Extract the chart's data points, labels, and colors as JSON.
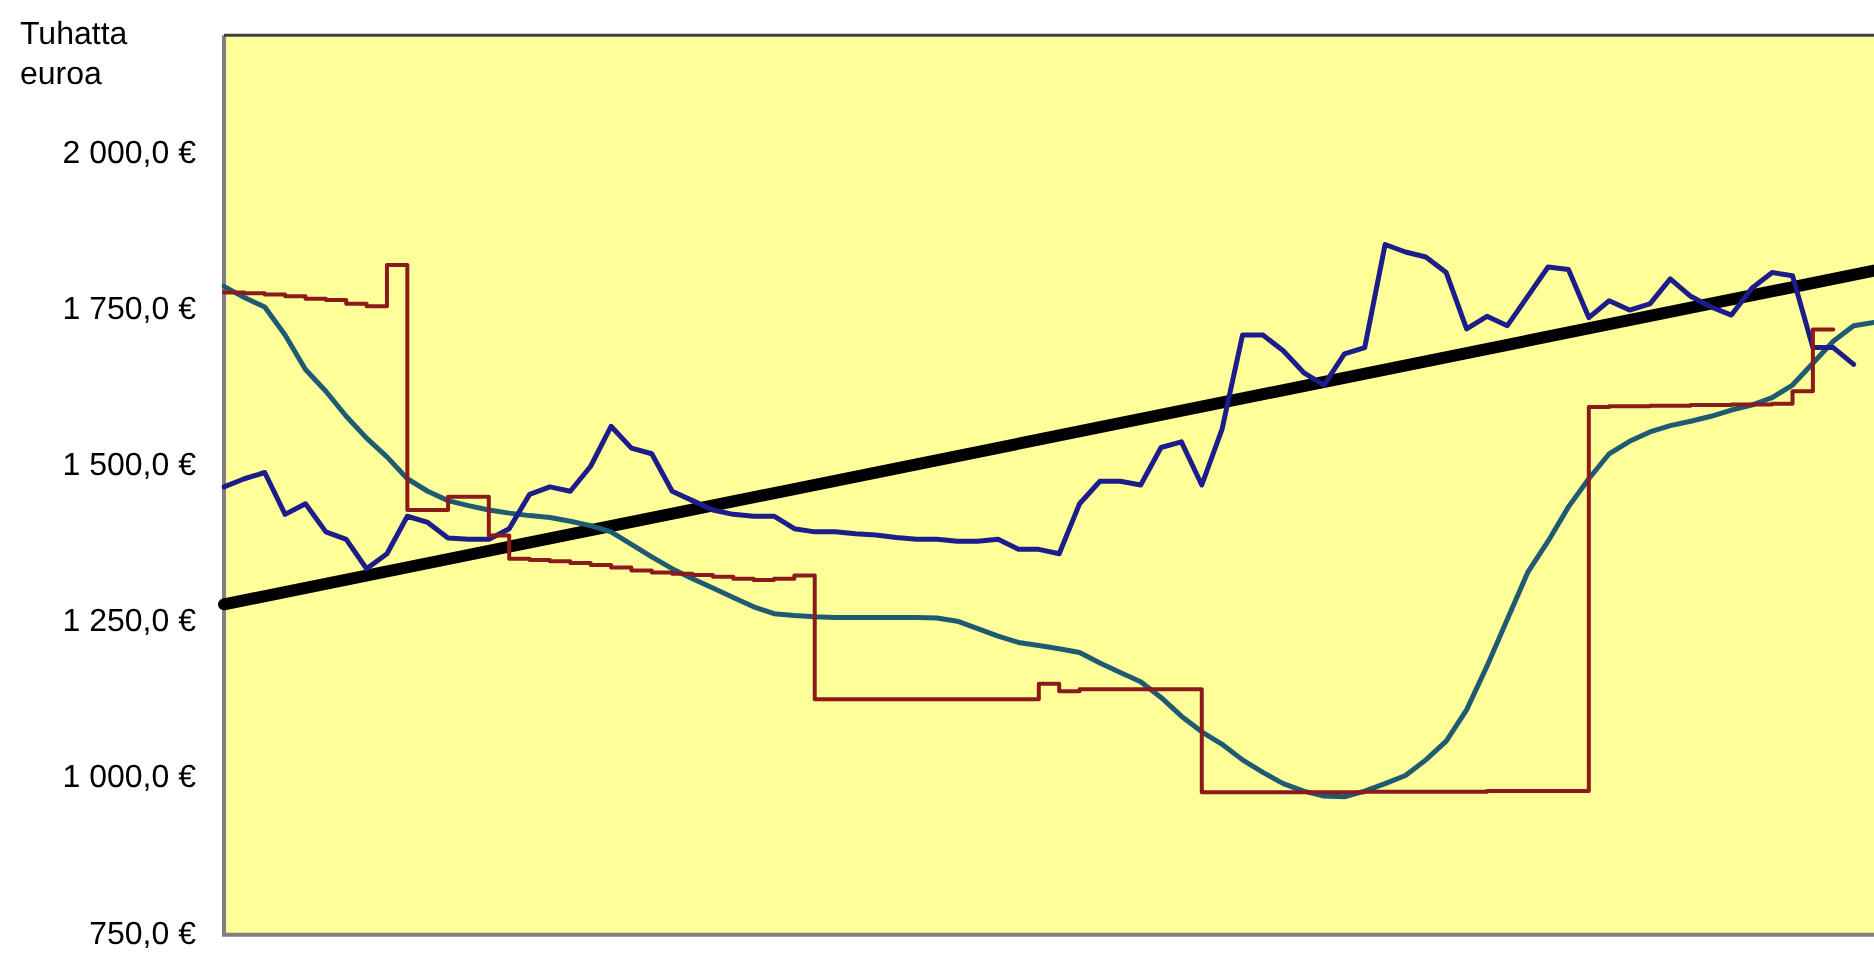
{
  "chart_data": {
    "type": "line",
    "ylabel": "Tuhatta euroa",
    "categories": [
      null,
      null,
      null,
      null,
      null,
      null,
      null,
      null,
      null,
      null,
      null,
      null,
      null,
      null,
      null,
      null,
      null,
      null,
      null,
      null,
      null,
      null,
      null,
      null,
      null,
      null,
      null,
      null,
      null,
      null,
      null,
      null,
      null,
      null,
      null,
      null,
      null,
      null,
      null,
      null,
      null,
      null,
      null,
      null,
      null,
      null,
      null,
      null,
      null,
      null,
      null,
      null,
      null,
      null,
      null,
      null,
      null,
      null,
      null,
      null,
      null,
      null,
      null,
      null,
      null,
      null,
      null,
      null,
      null,
      null,
      null,
      null,
      null,
      null,
      null,
      null,
      null,
      null,
      null,
      null,
      null,
      null
    ],
    "series": [
      {
        "type": "step",
        "color": "#8b1a1a",
        "values": [
          1779,
          1778,
          1777,
          1775,
          1772,
          1768,
          1766,
          1760,
          1756,
          1822,
          1430,
          1430,
          1451,
          1451,
          1389,
          1352,
          1350,
          1348,
          1345,
          1342,
          1338,
          1333,
          1330,
          1328,
          1326,
          1323,
          1320,
          1318,
          1320,
          1325,
          1127,
          1127,
          1127,
          1127,
          1127,
          1127,
          1127,
          1127,
          1127,
          1127,
          1127,
          1152,
          1140,
          1143,
          1143,
          1143,
          1143,
          1143,
          1143,
          978,
          978,
          978,
          978,
          978,
          978,
          978,
          978,
          979,
          979,
          979,
          979,
          979,
          979,
          980,
          980,
          980,
          980,
          980,
          1595,
          1596,
          1596,
          1597,
          1597,
          1598,
          1598,
          1599,
          1599,
          1600,
          1620,
          1719,
          null,
          null
        ]
      },
      {
        "color": "#1c1c8a",
        "values": [
          1467,
          1480,
          1490,
          1423,
          1440,
          1395,
          1383,
          1336,
          1360,
          1420,
          1410,
          1385,
          1383,
          1383,
          1400,
          1455,
          1467,
          1460,
          1500,
          1564,
          1529,
          1520,
          1460,
          1445,
          1430,
          1423,
          1420,
          1420,
          1400,
          1395,
          1395,
          1392,
          1390,
          1386,
          1383,
          1383,
          1380,
          1380,
          1383,
          1367,
          1367,
          1360,
          1440,
          1476,
          1476,
          1470,
          1530,
          1539,
          1470,
          1560,
          1710,
          1710,
          1685,
          1650,
          1630,
          1680,
          1690,
          1855,
          1843,
          1835,
          1810,
          1720,
          1740,
          1725,
          1772,
          1819,
          1815,
          1738,
          1765,
          1750,
          1760,
          1800,
          1772,
          1755,
          1742,
          1785,
          1810,
          1805,
          1690,
          1690,
          1663,
          null
        ]
      },
      {
        "color": "#1f5a73",
        "values": [
          1788,
          1770,
          1755,
          1710,
          1655,
          1620,
          1580,
          1545,
          1515,
          1480,
          1460,
          1445,
          1437,
          1430,
          1425,
          1421,
          1418,
          1412,
          1405,
          1395,
          1375,
          1355,
          1336,
          1320,
          1305,
          1290,
          1275,
          1264,
          1261,
          1259,
          1258,
          1258,
          1258,
          1258,
          1258,
          1257,
          1252,
          1240,
          1228,
          1218,
          1213,
          1208,
          1202,
          1185,
          1170,
          1155,
          1130,
          1100,
          1075,
          1055,
          1030,
          1010,
          992,
          980,
          972,
          971,
          980,
          992,
          1005,
          1030,
          1060,
          1110,
          1180,
          1255,
          1330,
          1380,
          1435,
          1480,
          1520,
          1540,
          1555,
          1565,
          1572,
          1580,
          1590,
          1598,
          1610,
          1630,
          1665,
          1700,
          1725,
          1730
        ]
      },
      {
        "color": "#000000",
        "values": [
          1279,
          null,
          null,
          null,
          null,
          null,
          null,
          null,
          null,
          null,
          null,
          null,
          null,
          null,
          null,
          null,
          null,
          null,
          null,
          null,
          null,
          null,
          null,
          null,
          null,
          null,
          null,
          null,
          null,
          null,
          null,
          null,
          null,
          null,
          null,
          null,
          null,
          null,
          null,
          null,
          null,
          null,
          null,
          null,
          null,
          null,
          null,
          null,
          null,
          null,
          null,
          null,
          null,
          null,
          null,
          null,
          null,
          null,
          null,
          null,
          null,
          null,
          null,
          null,
          null,
          null,
          null,
          null,
          null,
          null,
          null,
          null,
          null,
          null,
          null,
          null,
          null,
          null,
          null,
          null,
          null,
          1813
        ]
      }
    ],
    "ylim": [
      750,
      2190
    ],
    "yticks": [
      {
        "value": 750,
        "label": "750,0 €"
      },
      {
        "value": 1000,
        "label": "1 000,0 €"
      },
      {
        "value": 1250,
        "label": "1 250,0 €"
      },
      {
        "value": 1500,
        "label": "1 500,0 €"
      },
      {
        "value": 1750,
        "label": "1 750,0 €"
      },
      {
        "value": 2000,
        "label": "2 000,0 €"
      }
    ],
    "tick_labels": "y",
    "grid": false,
    "legend": false,
    "marker": "none",
    "line_style": "solid"
  }
}
